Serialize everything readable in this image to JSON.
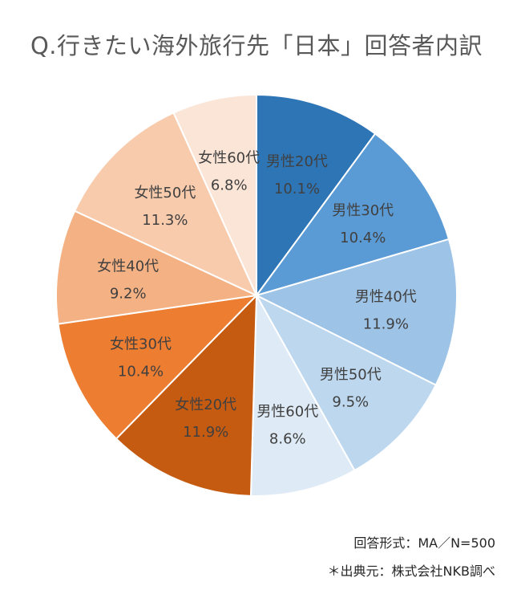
{
  "chart_data": {
    "type": "pie",
    "title": "Q.行きたい海外旅行先「日本」回答者内訳",
    "slices": [
      {
        "label": "男性20代",
        "value": 10.1,
        "value_label": "10.1%",
        "color": "#2E75B6"
      },
      {
        "label": "男性30代",
        "value": 10.4,
        "value_label": "10.4%",
        "color": "#5B9BD5"
      },
      {
        "label": "男性40代",
        "value": 11.9,
        "value_label": "11.9%",
        "color": "#9DC3E6"
      },
      {
        "label": "男性50代",
        "value": 9.5,
        "value_label": "9.5%",
        "color": "#BDD7EE"
      },
      {
        "label": "男性60代",
        "value": 8.6,
        "value_label": "8.6%",
        "color": "#DEEBF7"
      },
      {
        "label": "女性20代",
        "value": 11.9,
        "value_label": "11.9%",
        "color": "#C55A11"
      },
      {
        "label": "女性30代",
        "value": 10.4,
        "value_label": "10.4%",
        "color": "#ED7D31"
      },
      {
        "label": "女性40代",
        "value": 9.2,
        "value_label": "9.2%",
        "color": "#F4B183"
      },
      {
        "label": "女性50代",
        "value": 11.3,
        "value_label": "11.3%",
        "color": "#F8CBAD"
      },
      {
        "label": "女性60代",
        "value": 6.8,
        "value_label": "6.8%",
        "color": "#FBE5D6"
      }
    ],
    "start": "12 o'clock",
    "direction": "clockwise",
    "legend": "none"
  },
  "notes": {
    "method": "回答形式：MA／N=500",
    "source": "＊出典元：株式会社NKB調べ"
  }
}
